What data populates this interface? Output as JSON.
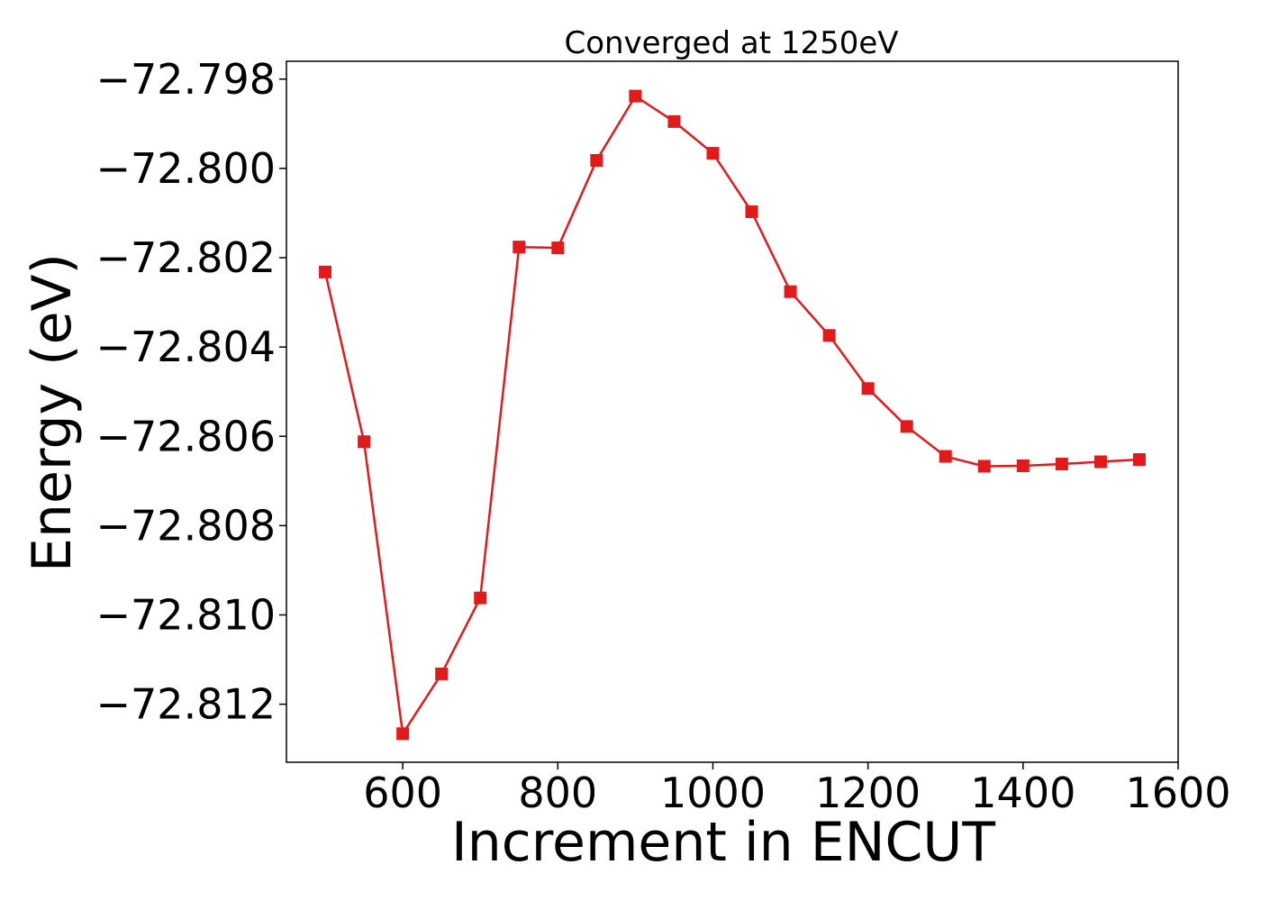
{
  "chart_data": {
    "type": "line",
    "title": "Converged at 1250eV",
    "xlabel": "Increment in ENCUT",
    "ylabel": "Energy (eV)",
    "xlim": [
      450,
      1600
    ],
    "ylim": [
      -72.8133,
      -72.7976
    ],
    "x_ticks": [
      600,
      800,
      1000,
      1200,
      1400,
      1600
    ],
    "y_ticks": [
      -72.798,
      -72.8,
      -72.802,
      -72.804,
      -72.806,
      -72.808,
      -72.81,
      -72.812
    ],
    "y_tick_labels": [
      "−72.798",
      "−72.800",
      "−72.802",
      "−72.804",
      "−72.806",
      "−72.808",
      "−72.810",
      "−72.812"
    ],
    "color": "#e31a1c",
    "marker": "square",
    "grid": false,
    "series": [
      {
        "x": [
          500,
          550,
          600,
          650,
          700,
          750,
          800,
          850,
          900,
          950,
          1000,
          1050,
          1100,
          1150,
          1200,
          1250,
          1300,
          1350,
          1400,
          1450,
          1500,
          1550
        ],
        "y": [
          -72.80232,
          -72.80612,
          -72.81266,
          -72.81132,
          -72.80962,
          -72.80176,
          -72.80178,
          -72.79982,
          -72.79838,
          -72.79895,
          -72.79966,
          -72.80097,
          -72.80276,
          -72.80374,
          -72.80493,
          -72.80578,
          -72.80645,
          -72.80667,
          -72.80666,
          -72.80662,
          -72.80657,
          -72.80652
        ]
      }
    ]
  }
}
